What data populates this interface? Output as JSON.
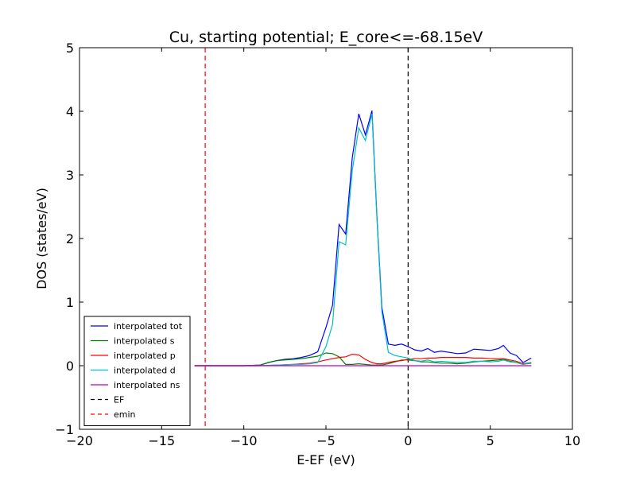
{
  "chart_data": {
    "type": "line",
    "title": "Cu, starting potential; E_core<=-68.15eV",
    "xlabel": "E-EF (eV)",
    "ylabel": "DOS (states/eV)",
    "xlim": [
      -20,
      10
    ],
    "ylim": [
      -1,
      5
    ],
    "xticks": [
      -20,
      -15,
      -10,
      -5,
      0,
      5,
      10
    ],
    "xtick_labels": [
      "−20",
      "−15",
      "−10",
      "−5",
      "0",
      "5",
      "10"
    ],
    "yticks": [
      -1,
      0,
      1,
      2,
      3,
      4,
      5
    ],
    "ytick_labels": [
      "−1",
      "0",
      "1",
      "2",
      "3",
      "4",
      "5"
    ],
    "grid": false,
    "legend_position": "lower-left",
    "series": [
      {
        "name": "interpolated tot",
        "color": "#0000ff",
        "x": [
          -13,
          -12,
          -11,
          -10,
          -9,
          -8.5,
          -8,
          -7.5,
          -7,
          -6.5,
          -6,
          -5.5,
          -5,
          -4.6,
          -4.2,
          -3.8,
          -3.4,
          -3.0,
          -2.6,
          -2.2,
          -1.9,
          -1.6,
          -1.2,
          -0.8,
          -0.4,
          0,
          0.4,
          0.8,
          1.2,
          1.6,
          2.0,
          2.5,
          3.0,
          3.5,
          4.0,
          4.5,
          5.0,
          5.5,
          5.8,
          6.2,
          6.6,
          7.0,
          7.5
        ],
        "y": [
          0,
          0,
          0,
          0,
          0.01,
          0.05,
          0.08,
          0.1,
          0.11,
          0.13,
          0.16,
          0.22,
          0.6,
          0.95,
          2.22,
          2.07,
          3.27,
          3.96,
          3.63,
          4.01,
          2.35,
          0.92,
          0.34,
          0.32,
          0.34,
          0.3,
          0.25,
          0.23,
          0.27,
          0.21,
          0.23,
          0.21,
          0.19,
          0.2,
          0.26,
          0.25,
          0.24,
          0.27,
          0.32,
          0.2,
          0.16,
          0.05,
          0.12
        ]
      },
      {
        "name": "interpolated s",
        "color": "#008000",
        "x": [
          -13,
          -12,
          -11,
          -10,
          -9,
          -8.5,
          -8,
          -7.5,
          -7,
          -6.5,
          -6,
          -5.5,
          -5,
          -4.6,
          -4.2,
          -3.8,
          -3.4,
          -3.0,
          -2.6,
          -2.2,
          -1.9,
          -1.6,
          -1.2,
          -0.8,
          -0.4,
          0,
          0.4,
          0.8,
          1.2,
          1.6,
          2.0,
          2.5,
          3.0,
          3.5,
          4.0,
          4.5,
          5.0,
          5.5,
          5.8,
          6.2,
          6.6,
          7.0,
          7.5
        ],
        "y": [
          0,
          0,
          0,
          0,
          0.01,
          0.05,
          0.08,
          0.09,
          0.1,
          0.11,
          0.13,
          0.15,
          0.2,
          0.19,
          0.14,
          0.02,
          0.02,
          0.03,
          0.02,
          0.01,
          0.01,
          0.01,
          0.03,
          0.06,
          0.09,
          0.09,
          0.08,
          0.06,
          0.06,
          0.05,
          0.04,
          0.04,
          0.03,
          0.04,
          0.06,
          0.07,
          0.08,
          0.09,
          0.1,
          0.07,
          0.05,
          0.02,
          0.04
        ]
      },
      {
        "name": "interpolated p",
        "color": "#ff0000",
        "x": [
          -13,
          -12,
          -11,
          -10,
          -9,
          -8.5,
          -8,
          -7.5,
          -7,
          -6.5,
          -6,
          -5.5,
          -5,
          -4.6,
          -4.2,
          -3.8,
          -3.4,
          -3.0,
          -2.6,
          -2.2,
          -1.9,
          -1.6,
          -1.2,
          -0.8,
          -0.4,
          0,
          0.4,
          0.8,
          1.2,
          1.6,
          2.0,
          2.5,
          3.0,
          3.5,
          4.0,
          4.5,
          5.0,
          5.5,
          5.8,
          6.2,
          6.6,
          7.0,
          7.5
        ],
        "y": [
          0,
          0,
          0,
          0,
          0,
          0.005,
          0.01,
          0.015,
          0.02,
          0.03,
          0.04,
          0.06,
          0.09,
          0.11,
          0.13,
          0.14,
          0.18,
          0.17,
          0.1,
          0.05,
          0.03,
          0.03,
          0.05,
          0.07,
          0.08,
          0.1,
          0.11,
          0.11,
          0.12,
          0.12,
          0.13,
          0.13,
          0.13,
          0.13,
          0.12,
          0.12,
          0.11,
          0.11,
          0.11,
          0.09,
          0.07,
          0.03,
          0.05
        ]
      },
      {
        "name": "interpolated d",
        "color": "#00bfbf",
        "x": [
          -13,
          -12,
          -11,
          -10,
          -9,
          -8.5,
          -8,
          -7.5,
          -7,
          -6.5,
          -6,
          -5.5,
          -5,
          -4.6,
          -4.2,
          -3.8,
          -3.4,
          -3.0,
          -2.6,
          -2.2,
          -1.9,
          -1.6,
          -1.2,
          -0.8,
          -0.4,
          0,
          0.4,
          0.8,
          1.2,
          1.6,
          2.0,
          2.5,
          3.0,
          3.5,
          4.0,
          4.5,
          5.0,
          5.5,
          5.8,
          6.2,
          6.6,
          7.0,
          7.5
        ],
        "y": [
          0,
          0,
          0,
          0,
          0,
          0.005,
          0.01,
          0.015,
          0.02,
          0.02,
          0.03,
          0.05,
          0.3,
          0.65,
          1.95,
          1.9,
          3.07,
          3.74,
          3.54,
          3.96,
          2.32,
          0.85,
          0.21,
          0.16,
          0.14,
          0.12,
          0.08,
          0.07,
          0.09,
          0.06,
          0.07,
          0.06,
          0.05,
          0.05,
          0.07,
          0.07,
          0.06,
          0.07,
          0.09,
          0.06,
          0.05,
          0.02,
          0.05
        ]
      },
      {
        "name": "interpolated ns",
        "color": "#bf00bf",
        "x": [
          -13,
          -12,
          -11,
          -10,
          -9,
          -8,
          -7,
          -6,
          -5,
          -4,
          -3,
          -2,
          -1,
          0,
          1,
          2,
          3,
          4,
          5,
          6,
          7,
          7.5
        ],
        "y": [
          0,
          0,
          0,
          0,
          0,
          0,
          0,
          0,
          0,
          0,
          0,
          0,
          0,
          0,
          0,
          0,
          0,
          0,
          0,
          0,
          0,
          0
        ]
      }
    ],
    "vlines": [
      {
        "name": "EF",
        "x": 0,
        "color": "#000000",
        "style": "dashed"
      },
      {
        "name": "emin",
        "x": -12.35,
        "color": "#ff0000",
        "style": "dashed"
      }
    ]
  }
}
